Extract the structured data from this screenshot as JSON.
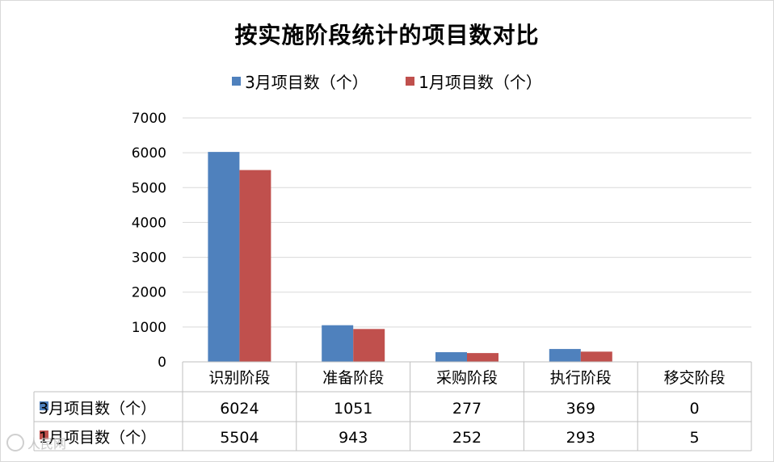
{
  "chart_data": {
    "type": "bar",
    "title": "按实施阶段统计的项目数对比",
    "categories": [
      "识别阶段",
      "准备阶段",
      "采购阶段",
      "执行阶段",
      "移交阶段"
    ],
    "series": [
      {
        "name": "3月项目数（个）",
        "values": [
          6024,
          1051,
          277,
          369,
          0
        ],
        "color": "#4f81bd"
      },
      {
        "name": "1月项目数（个）",
        "values": [
          5504,
          943,
          252,
          293,
          5
        ],
        "color": "#c0504d"
      }
    ],
    "ylim": [
      0,
      7000
    ],
    "yticks": [
      0,
      1000,
      2000,
      3000,
      4000,
      5000,
      6000,
      7000
    ],
    "grid": true,
    "legend": "top",
    "data_table": true
  },
  "watermark": "人民网"
}
